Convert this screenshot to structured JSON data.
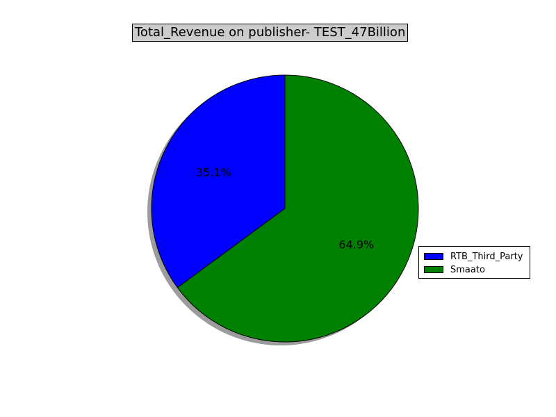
{
  "chart_data": {
    "type": "pie",
    "title": "Total_Revenue on publisher- TEST_47Billion",
    "labels": [
      "RTB_Third_Party",
      "Smaato"
    ],
    "values": [
      35.1,
      64.9
    ],
    "value_labels": [
      "35.1%",
      "64.9%"
    ],
    "colors": [
      "#0000ff",
      "#008000"
    ],
    "start_angle_deg": 90,
    "direction": "counterclockwise",
    "shadow": true,
    "legend": {
      "placement": "right",
      "entries": [
        "RTB_Third_Party",
        "Smaato"
      ]
    }
  }
}
